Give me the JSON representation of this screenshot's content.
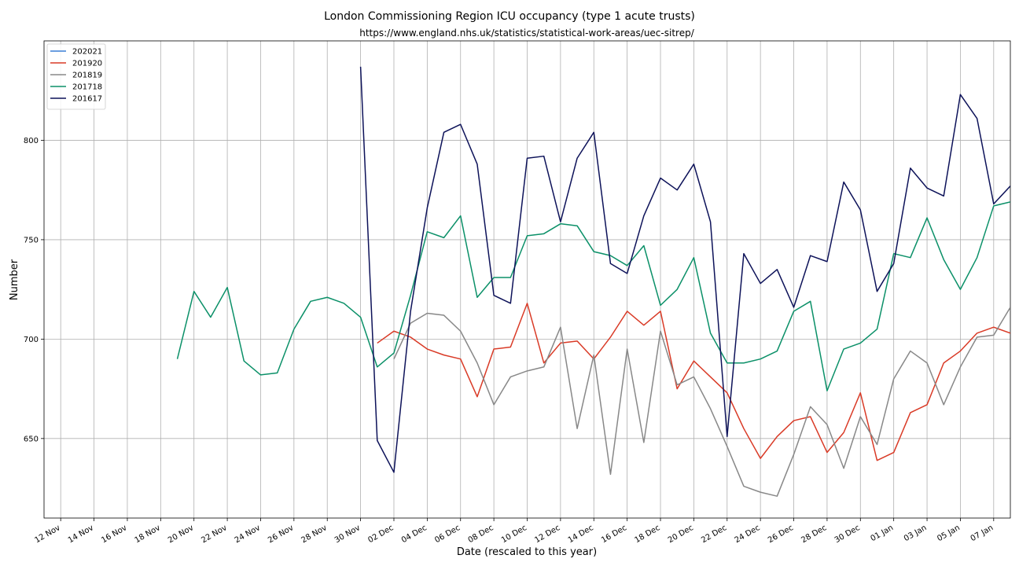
{
  "chart_data": {
    "type": "line",
    "title": "London Commissioning Region ICU occupancy (type 1 acute trusts)",
    "subtitle": "https://www.england.nhs.uk/statistics/statistical-work-areas/uec-sitrep/",
    "xlabel": "Date (rescaled to this year)",
    "ylabel": "Number",
    "x_tick_labels": [
      "12 Nov",
      "14 Nov",
      "16 Nov",
      "18 Nov",
      "20 Nov",
      "22 Nov",
      "24 Nov",
      "26 Nov",
      "28 Nov",
      "30 Nov",
      "02 Dec",
      "04 Dec",
      "06 Dec",
      "08 Dec",
      "10 Dec",
      "12 Dec",
      "14 Dec",
      "16 Dec",
      "18 Dec",
      "20 Dec",
      "22 Dec",
      "24 Dec",
      "26 Dec",
      "28 Dec",
      "30 Dec",
      "01 Jan",
      "03 Jan",
      "05 Jan",
      "07 Jan"
    ],
    "x_start": "2020-11-11",
    "x_end": "2021-01-08",
    "y_ticks": [
      650,
      700,
      750,
      800
    ],
    "ylim": [
      610,
      850
    ],
    "grid": true,
    "legend_position": "top-left",
    "series": [
      {
        "name": "202021",
        "color": "#3a7fd5",
        "start": "2020-11-11",
        "values": []
      },
      {
        "name": "201920",
        "color": "#d93a26",
        "start": "2020-12-01",
        "values": [
          698,
          704,
          701,
          695,
          692,
          690,
          671,
          695,
          696,
          718,
          688,
          698,
          699,
          690,
          701,
          714,
          707,
          714,
          675,
          689,
          681,
          673,
          655,
          640,
          651,
          659,
          661,
          643,
          653,
          673,
          639,
          643,
          663,
          667,
          688,
          694,
          703,
          706,
          703
        ]
      },
      {
        "name": "201819",
        "color": "#888888",
        "start": "2020-12-02",
        "values": [
          690,
          708,
          713,
          712,
          704,
          688,
          667,
          681,
          684,
          686,
          706,
          655,
          692,
          632,
          695,
          648,
          704,
          677,
          681,
          665,
          646,
          626,
          623,
          621,
          642,
          666,
          657,
          635,
          661,
          647,
          680,
          694,
          688,
          667,
          686,
          701,
          702,
          716
        ]
      },
      {
        "name": "201718",
        "color": "#0b9068",
        "start": "2020-11-19",
        "values": [
          690,
          724,
          711,
          726,
          689,
          682,
          683,
          705,
          719,
          721,
          718,
          711,
          686,
          693,
          722,
          754,
          751,
          762,
          721,
          731,
          731,
          752,
          753,
          758,
          757,
          744,
          742,
          737,
          747,
          717,
          725,
          741,
          703,
          688,
          688,
          690,
          694,
          714,
          719,
          674,
          695,
          698,
          705,
          743,
          741,
          761,
          740,
          725,
          741,
          767,
          769
        ]
      },
      {
        "name": "201617",
        "color": "#0d1259",
        "start": "2020-11-30",
        "values": [
          837,
          649,
          633,
          714,
          766,
          804,
          808,
          788,
          722,
          718,
          791,
          792,
          759,
          791,
          804,
          738,
          733,
          762,
          781,
          775,
          788,
          759,
          651,
          743,
          728,
          735,
          716,
          742,
          739,
          779,
          765,
          724,
          738,
          786,
          776,
          772,
          823,
          811,
          768,
          777
        ]
      }
    ]
  }
}
